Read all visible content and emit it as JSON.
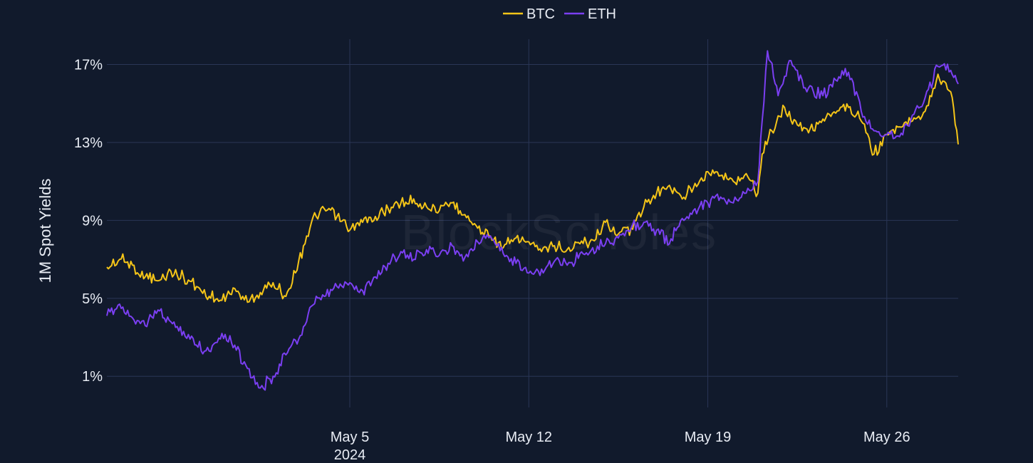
{
  "chart_data": {
    "type": "line",
    "title": "",
    "xlabel": "",
    "ylabel": "1M Spot Yields",
    "x_axis": {
      "type": "date",
      "range": [
        "2024-04-25T12:00",
        "2024-05-28T19:00"
      ],
      "ticks": [
        {
          "date": "2024-05-05",
          "label": "May 5",
          "sublabel": "2024"
        },
        {
          "date": "2024-05-12",
          "label": "May 12",
          "sublabel": ""
        },
        {
          "date": "2024-05-19",
          "label": "May 19",
          "sublabel": ""
        },
        {
          "date": "2024-05-26",
          "label": "May 26",
          "sublabel": ""
        }
      ]
    },
    "y_axis": {
      "unit": "%",
      "range": [
        -0.6,
        18.3
      ],
      "ticks": [
        {
          "value": 1,
          "label": "1%"
        },
        {
          "value": 5,
          "label": "5%"
        },
        {
          "value": 9,
          "label": "9%"
        },
        {
          "value": 13,
          "label": "13%"
        },
        {
          "value": 17,
          "label": "17%"
        }
      ]
    },
    "grid": true,
    "legend_position": "top-center",
    "watermark": "BlockScholes",
    "series": [
      {
        "name": "BTC",
        "color": "#f5c518",
        "points": [
          [
            "2024-04-25T12:00",
            6.6
          ],
          [
            "2024-04-26T00:00",
            7.0
          ],
          [
            "2024-04-26T12:00",
            6.7
          ],
          [
            "2024-04-27T00:00",
            6.1
          ],
          [
            "2024-04-27T12:00",
            5.9
          ],
          [
            "2024-04-28T00:00",
            6.4
          ],
          [
            "2024-04-28T12:00",
            6.1
          ],
          [
            "2024-04-29T00:00",
            5.6
          ],
          [
            "2024-04-29T12:00",
            5.1
          ],
          [
            "2024-04-30T00:00",
            4.9
          ],
          [
            "2024-04-30T12:00",
            5.5
          ],
          [
            "2024-05-01T00:00",
            4.8
          ],
          [
            "2024-05-01T12:00",
            5.3
          ],
          [
            "2024-05-02T00:00",
            5.8
          ],
          [
            "2024-05-02T12:00",
            5.1
          ],
          [
            "2024-05-03T00:00",
            6.9
          ],
          [
            "2024-05-03T12:00",
            8.9
          ],
          [
            "2024-05-04T00:00",
            9.6
          ],
          [
            "2024-05-04T12:00",
            9.2
          ],
          [
            "2024-05-05T00:00",
            8.5
          ],
          [
            "2024-05-05T12:00",
            8.9
          ],
          [
            "2024-05-06T00:00",
            9.2
          ],
          [
            "2024-05-06T12:00",
            9.6
          ],
          [
            "2024-05-07T00:00",
            9.9
          ],
          [
            "2024-05-07T12:00",
            10.1
          ],
          [
            "2024-05-08T00:00",
            9.7
          ],
          [
            "2024-05-08T12:00",
            9.5
          ],
          [
            "2024-05-09T00:00",
            9.9
          ],
          [
            "2024-05-09T12:00",
            9.3
          ],
          [
            "2024-05-10T00:00",
            8.6
          ],
          [
            "2024-05-10T12:00",
            8.2
          ],
          [
            "2024-05-11T00:00",
            7.6
          ],
          [
            "2024-05-11T12:00",
            8.1
          ],
          [
            "2024-05-12T00:00",
            7.9
          ],
          [
            "2024-05-12T12:00",
            7.4
          ],
          [
            "2024-05-13T00:00",
            7.7
          ],
          [
            "2024-05-13T12:00",
            7.5
          ],
          [
            "2024-05-14T00:00",
            7.8
          ],
          [
            "2024-05-14T12:00",
            8.0
          ],
          [
            "2024-05-15T00:00",
            8.9
          ],
          [
            "2024-05-15T12:00",
            8.3
          ],
          [
            "2024-05-16T00:00",
            8.6
          ],
          [
            "2024-05-16T12:00",
            9.7
          ],
          [
            "2024-05-17T00:00",
            10.4
          ],
          [
            "2024-05-17T12:00",
            10.8
          ],
          [
            "2024-05-18T00:00",
            10.1
          ],
          [
            "2024-05-18T12:00",
            10.9
          ],
          [
            "2024-05-19T00:00",
            11.5
          ],
          [
            "2024-05-19T12:00",
            11.3
          ],
          [
            "2024-05-20T00:00",
            11.0
          ],
          [
            "2024-05-20T12:00",
            11.4
          ],
          [
            "2024-05-20T23:00",
            10.4
          ],
          [
            "2024-05-21T03:00",
            12.4
          ],
          [
            "2024-05-21T12:00",
            13.6
          ],
          [
            "2024-05-22T00:00",
            14.8
          ],
          [
            "2024-05-22T12:00",
            13.9
          ],
          [
            "2024-05-23T00:00",
            13.7
          ],
          [
            "2024-05-23T12:00",
            14.2
          ],
          [
            "2024-05-24T00:00",
            14.5
          ],
          [
            "2024-05-24T12:00",
            14.8
          ],
          [
            "2024-05-25T00:00",
            14.1
          ],
          [
            "2024-05-25T12:00",
            12.4
          ],
          [
            "2024-05-26T00:00",
            13.4
          ],
          [
            "2024-05-26T12:00",
            13.8
          ],
          [
            "2024-05-27T00:00",
            14.1
          ],
          [
            "2024-05-27T12:00",
            14.6
          ],
          [
            "2024-05-28T00:00",
            16.5
          ],
          [
            "2024-05-28T12:00",
            15.6
          ],
          [
            "2024-05-28T19:00",
            12.9
          ]
        ]
      },
      {
        "name": "ETH",
        "color": "#7b3ff2",
        "points": [
          [
            "2024-04-25T12:00",
            4.1
          ],
          [
            "2024-04-26T00:00",
            4.7
          ],
          [
            "2024-04-26T12:00",
            4.0
          ],
          [
            "2024-04-27T00:00",
            3.6
          ],
          [
            "2024-04-27T12:00",
            4.4
          ],
          [
            "2024-04-28T00:00",
            3.8
          ],
          [
            "2024-04-28T12:00",
            3.3
          ],
          [
            "2024-04-29T00:00",
            2.6
          ],
          [
            "2024-04-29T12:00",
            2.3
          ],
          [
            "2024-04-30T00:00",
            3.2
          ],
          [
            "2024-04-30T12:00",
            2.6
          ],
          [
            "2024-05-01T00:00",
            1.4
          ],
          [
            "2024-05-01T12:00",
            0.4
          ],
          [
            "2024-05-02T00:00",
            1.0
          ],
          [
            "2024-05-02T12:00",
            2.1
          ],
          [
            "2024-05-03T00:00",
            2.9
          ],
          [
            "2024-05-03T12:00",
            4.6
          ],
          [
            "2024-05-04T00:00",
            5.1
          ],
          [
            "2024-05-04T12:00",
            5.6
          ],
          [
            "2024-05-05T00:00",
            5.8
          ],
          [
            "2024-05-05T12:00",
            5.4
          ],
          [
            "2024-05-06T00:00",
            6.1
          ],
          [
            "2024-05-06T12:00",
            6.8
          ],
          [
            "2024-05-07T00:00",
            7.4
          ],
          [
            "2024-05-07T12:00",
            7.0
          ],
          [
            "2024-05-08T00:00",
            7.5
          ],
          [
            "2024-05-08T12:00",
            7.2
          ],
          [
            "2024-05-09T00:00",
            7.7
          ],
          [
            "2024-05-09T12:00",
            7.1
          ],
          [
            "2024-05-10T00:00",
            7.9
          ],
          [
            "2024-05-10T12:00",
            8.2
          ],
          [
            "2024-05-11T00:00",
            7.3
          ],
          [
            "2024-05-11T12:00",
            6.8
          ],
          [
            "2024-05-12T00:00",
            6.3
          ],
          [
            "2024-05-12T12:00",
            6.5
          ],
          [
            "2024-05-13T00:00",
            6.9
          ],
          [
            "2024-05-13T12:00",
            6.7
          ],
          [
            "2024-05-14T00:00",
            7.3
          ],
          [
            "2024-05-14T12:00",
            7.6
          ],
          [
            "2024-05-15T00:00",
            7.8
          ],
          [
            "2024-05-15T12:00",
            8.1
          ],
          [
            "2024-05-16T00:00",
            8.6
          ],
          [
            "2024-05-16T12:00",
            8.9
          ],
          [
            "2024-05-17T00:00",
            8.5
          ],
          [
            "2024-05-17T12:00",
            7.8
          ],
          [
            "2024-05-18T00:00",
            9.1
          ],
          [
            "2024-05-18T12:00",
            9.6
          ],
          [
            "2024-05-19T00:00",
            9.9
          ],
          [
            "2024-05-19T12:00",
            10.2
          ],
          [
            "2024-05-20T00:00",
            9.9
          ],
          [
            "2024-05-20T12:00",
            10.4
          ],
          [
            "2024-05-20T23:00",
            11.0
          ],
          [
            "2024-05-21T03:00",
            14.1
          ],
          [
            "2024-05-21T08:00",
            17.7
          ],
          [
            "2024-05-21T18:00",
            15.4
          ],
          [
            "2024-05-22T06:00",
            17.2
          ],
          [
            "2024-05-22T18:00",
            15.8
          ],
          [
            "2024-05-23T12:00",
            15.4
          ],
          [
            "2024-05-24T00:00",
            16.2
          ],
          [
            "2024-05-24T12:00",
            16.6
          ],
          [
            "2024-05-25T00:00",
            14.6
          ],
          [
            "2024-05-25T12:00",
            13.6
          ],
          [
            "2024-05-26T00:00",
            13.4
          ],
          [
            "2024-05-26T12:00",
            13.3
          ],
          [
            "2024-05-27T00:00",
            14.4
          ],
          [
            "2024-05-27T12:00",
            15.3
          ],
          [
            "2024-05-28T00:00",
            16.9
          ],
          [
            "2024-05-28T12:00",
            16.7
          ],
          [
            "2024-05-28T19:00",
            16.0
          ]
        ]
      }
    ]
  }
}
